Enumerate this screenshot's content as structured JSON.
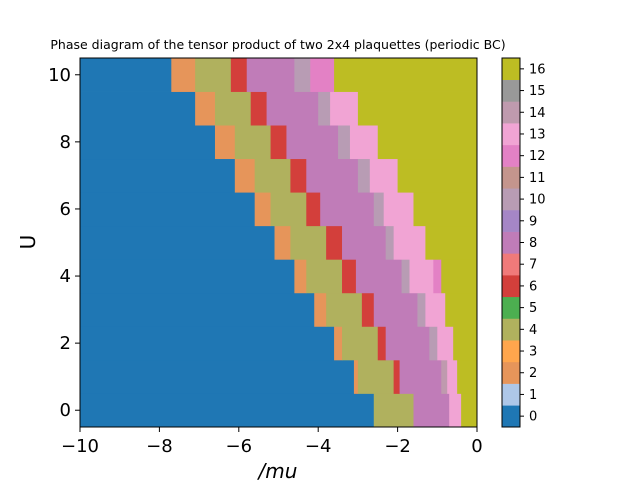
{
  "chart_data": {
    "type": "heatmap",
    "title": "Phase diagram of the tensor product of two 2x4 plaquettes (periodic BC)",
    "xlabel": "/mu",
    "ylabel": "U",
    "xlim": [
      -10,
      0
    ],
    "ylim": [
      -0.5,
      10.5
    ],
    "x_ticks": [
      -10,
      -8,
      -6,
      -4,
      -2,
      0
    ],
    "x_tick_labels": [
      "−10",
      "−8",
      "−6",
      "−4",
      "−2",
      "0"
    ],
    "y_ticks": [
      0,
      2,
      4,
      6,
      8,
      10
    ],
    "y_tick_labels": [
      "0",
      "2",
      "4",
      "6",
      "8",
      "10"
    ],
    "colorbar": {
      "levels": [
        0,
        1,
        2,
        3,
        4,
        5,
        6,
        7,
        8,
        9,
        10,
        11,
        12,
        13,
        14,
        15,
        16
      ],
      "colors": [
        "#1f77b4",
        "#aec7e8",
        "#e6955a",
        "#ffa64d",
        "#b0b15e",
        "#4caf50",
        "#d33f3b",
        "#f07a7a",
        "#c07cb8",
        "#a586c6",
        "#b89cb4",
        "#c4958d",
        "#e381c5",
        "#f1a4d4",
        "#bf9aae",
        "#999999",
        "#bdbd23"
      ]
    },
    "rows": [
      {
        "U": 0,
        "bands": [
          [
            -10,
            -2.6,
            0
          ],
          [
            -2.6,
            -1.6,
            4
          ],
          [
            -1.6,
            -0.7,
            8
          ],
          [
            -0.7,
            -0.4,
            13
          ],
          [
            -0.4,
            0,
            16
          ]
        ]
      },
      {
        "U": 1,
        "bands": [
          [
            -10,
            -3.1,
            0
          ],
          [
            -3.1,
            -3.0,
            2
          ],
          [
            -3.0,
            -2.1,
            4
          ],
          [
            -2.1,
            -1.95,
            6
          ],
          [
            -1.95,
            -0.9,
            8
          ],
          [
            -0.9,
            -0.75,
            14
          ],
          [
            -0.75,
            -0.5,
            13
          ],
          [
            -0.5,
            0,
            16
          ]
        ]
      },
      {
        "U": 2,
        "bands": [
          [
            -10,
            -3.6,
            0
          ],
          [
            -3.6,
            -3.4,
            2
          ],
          [
            -3.4,
            -2.5,
            4
          ],
          [
            -2.5,
            -2.3,
            6
          ],
          [
            -2.3,
            -1.2,
            8
          ],
          [
            -1.2,
            -1.0,
            10
          ],
          [
            -1.0,
            -0.6,
            13
          ],
          [
            -0.6,
            0,
            16
          ]
        ]
      },
      {
        "U": 3,
        "bands": [
          [
            -10,
            -4.1,
            0
          ],
          [
            -4.1,
            -3.8,
            2
          ],
          [
            -3.8,
            -2.9,
            4
          ],
          [
            -2.9,
            -2.6,
            6
          ],
          [
            -2.6,
            -1.5,
            8
          ],
          [
            -1.5,
            -1.3,
            10
          ],
          [
            -1.3,
            -0.8,
            13
          ],
          [
            -0.8,
            0,
            16
          ]
        ]
      },
      {
        "U": 4,
        "bands": [
          [
            -10,
            -4.6,
            0
          ],
          [
            -4.6,
            -4.3,
            2
          ],
          [
            -4.3,
            -3.4,
            4
          ],
          [
            -3.4,
            -3.05,
            6
          ],
          [
            -3.05,
            -1.9,
            8
          ],
          [
            -1.9,
            -1.7,
            10
          ],
          [
            -1.7,
            -1.1,
            13
          ],
          [
            -1.1,
            -0.9,
            12
          ],
          [
            -0.9,
            0,
            16
          ]
        ]
      },
      {
        "U": 5,
        "bands": [
          [
            -10,
            -5.1,
            0
          ],
          [
            -5.1,
            -4.7,
            2
          ],
          [
            -4.7,
            -3.8,
            4
          ],
          [
            -3.8,
            -3.4,
            6
          ],
          [
            -3.4,
            -2.3,
            8
          ],
          [
            -2.3,
            -2.1,
            10
          ],
          [
            -2.1,
            -1.3,
            13
          ],
          [
            -1.3,
            0,
            16
          ]
        ]
      },
      {
        "U": 6,
        "bands": [
          [
            -10,
            -5.6,
            0
          ],
          [
            -5.6,
            -5.2,
            2
          ],
          [
            -5.2,
            -4.3,
            4
          ],
          [
            -4.3,
            -3.95,
            6
          ],
          [
            -3.95,
            -2.6,
            8
          ],
          [
            -2.6,
            -2.35,
            10
          ],
          [
            -2.35,
            -1.6,
            13
          ],
          [
            -1.6,
            0,
            16
          ]
        ]
      },
      {
        "U": 7,
        "bands": [
          [
            -10,
            -6.1,
            0
          ],
          [
            -6.1,
            -5.6,
            2
          ],
          [
            -5.6,
            -4.7,
            4
          ],
          [
            -4.7,
            -4.3,
            6
          ],
          [
            -4.3,
            -3.0,
            8
          ],
          [
            -3.0,
            -2.7,
            10
          ],
          [
            -2.7,
            -2.0,
            13
          ],
          [
            -2.0,
            0,
            16
          ]
        ]
      },
      {
        "U": 8,
        "bands": [
          [
            -10,
            -6.6,
            0
          ],
          [
            -6.6,
            -6.1,
            2
          ],
          [
            -6.1,
            -5.2,
            4
          ],
          [
            -5.2,
            -4.8,
            6
          ],
          [
            -4.8,
            -3.5,
            8
          ],
          [
            -3.5,
            -3.2,
            10
          ],
          [
            -3.2,
            -2.5,
            13
          ],
          [
            -2.5,
            0,
            16
          ]
        ]
      },
      {
        "U": 9,
        "bands": [
          [
            -10,
            -7.1,
            0
          ],
          [
            -7.1,
            -6.6,
            2
          ],
          [
            -6.6,
            -5.7,
            4
          ],
          [
            -5.7,
            -5.3,
            6
          ],
          [
            -5.3,
            -4.0,
            8
          ],
          [
            -4.0,
            -3.7,
            10
          ],
          [
            -3.7,
            -3.0,
            13
          ],
          [
            -3.0,
            0,
            16
          ]
        ]
      },
      {
        "U": 10,
        "bands": [
          [
            -10,
            -7.7,
            0
          ],
          [
            -7.7,
            -7.1,
            2
          ],
          [
            -7.1,
            -6.2,
            4
          ],
          [
            -6.2,
            -5.8,
            6
          ],
          [
            -5.8,
            -4.6,
            8
          ],
          [
            -4.6,
            -4.2,
            10
          ],
          [
            -4.2,
            -3.6,
            12
          ],
          [
            -3.6,
            0,
            16
          ]
        ]
      }
    ]
  }
}
